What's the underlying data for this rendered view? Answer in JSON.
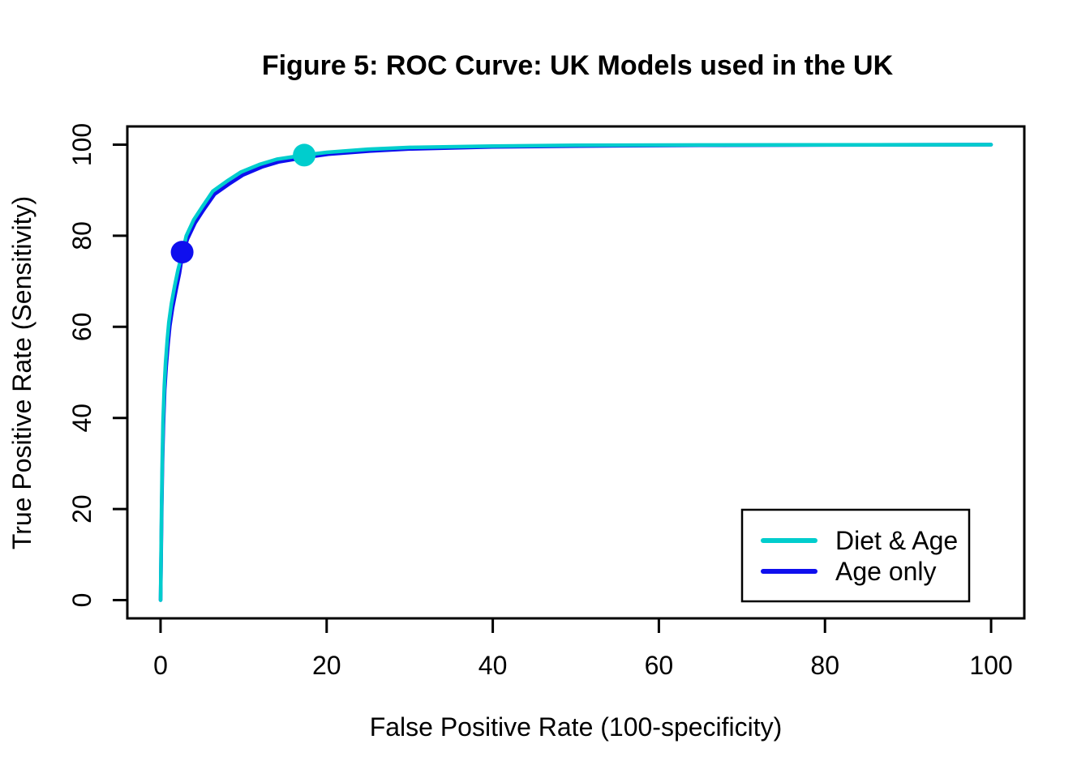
{
  "chart_data": {
    "type": "line",
    "title": "Figure 5: ROC Curve: UK Models used in the UK",
    "xlabel": "False Positive Rate (100-specificity)",
    "ylabel": "True Positive Rate (Sensitivity)",
    "xlim": [
      0,
      100
    ],
    "ylim": [
      0,
      100
    ],
    "xticks": [
      0,
      20,
      40,
      60,
      80,
      100
    ],
    "yticks": [
      0,
      20,
      40,
      60,
      80,
      100
    ],
    "grid": false,
    "background": "#FFFFFF",
    "axis_color": "#000000",
    "legend": {
      "position": "bottom-right",
      "border_color": "#000000",
      "entries": [
        {
          "label": "Diet & Age",
          "color": "#00CDCD"
        },
        {
          "label": "Age only",
          "color": "#0F0FEE"
        }
      ]
    },
    "series": [
      {
        "name": "Age only",
        "color": "#0F0FEE",
        "points": [
          [
            0,
            0
          ],
          [
            0.07,
            10
          ],
          [
            0.14,
            20
          ],
          [
            0.23,
            30
          ],
          [
            0.35,
            38.5
          ],
          [
            0.5,
            46.3
          ],
          [
            0.68,
            51.3
          ],
          [
            0.9,
            56.2
          ],
          [
            1.12,
            60.2
          ],
          [
            1.45,
            64.2
          ],
          [
            1.88,
            68.2
          ],
          [
            2.28,
            71.8
          ],
          [
            2.64,
            76.0
          ],
          [
            3.25,
            79.3
          ],
          [
            4.15,
            82.8
          ],
          [
            5.15,
            85.6
          ],
          [
            6.5,
            89.1
          ],
          [
            8.2,
            91.3
          ],
          [
            9.9,
            93.3
          ],
          [
            12.2,
            95.1
          ],
          [
            14.2,
            96.2
          ],
          [
            17.5,
            97.2
          ],
          [
            20.2,
            97.9
          ],
          [
            25.2,
            98.6
          ],
          [
            30,
            99.05
          ],
          [
            40,
            99.5
          ],
          [
            50,
            99.7
          ],
          [
            65,
            99.85
          ],
          [
            80,
            99.93
          ],
          [
            100,
            100
          ]
        ]
      },
      {
        "name": "Diet & Age",
        "color": "#00CDCD",
        "points": [
          [
            0,
            0
          ],
          [
            0.06,
            10
          ],
          [
            0.12,
            20
          ],
          [
            0.2,
            30
          ],
          [
            0.3,
            39
          ],
          [
            0.45,
            47
          ],
          [
            0.6,
            52
          ],
          [
            0.8,
            57
          ],
          [
            1.0,
            61
          ],
          [
            1.3,
            65
          ],
          [
            1.7,
            69
          ],
          [
            2.1,
            72.5
          ],
          [
            2.64,
            76.3
          ],
          [
            3.1,
            80
          ],
          [
            4,
            83.5
          ],
          [
            5,
            86.3
          ],
          [
            6.3,
            89.8
          ],
          [
            8,
            92
          ],
          [
            9.7,
            94
          ],
          [
            12,
            95.7
          ],
          [
            14,
            96.8
          ],
          [
            17.3,
            97.7
          ],
          [
            20,
            98.3
          ],
          [
            25,
            99
          ],
          [
            30,
            99.4
          ],
          [
            40,
            99.7
          ],
          [
            50,
            99.85
          ],
          [
            65,
            99.93
          ],
          [
            80,
            99.97
          ],
          [
            100,
            100
          ]
        ]
      }
    ],
    "operating_points": [
      {
        "series": "Diet & Age",
        "x": 17.3,
        "y": 97.7,
        "color": "#00CDCD"
      },
      {
        "series": "Age only",
        "x": 2.6,
        "y": 76.4,
        "color": "#0F0FEE"
      }
    ]
  }
}
